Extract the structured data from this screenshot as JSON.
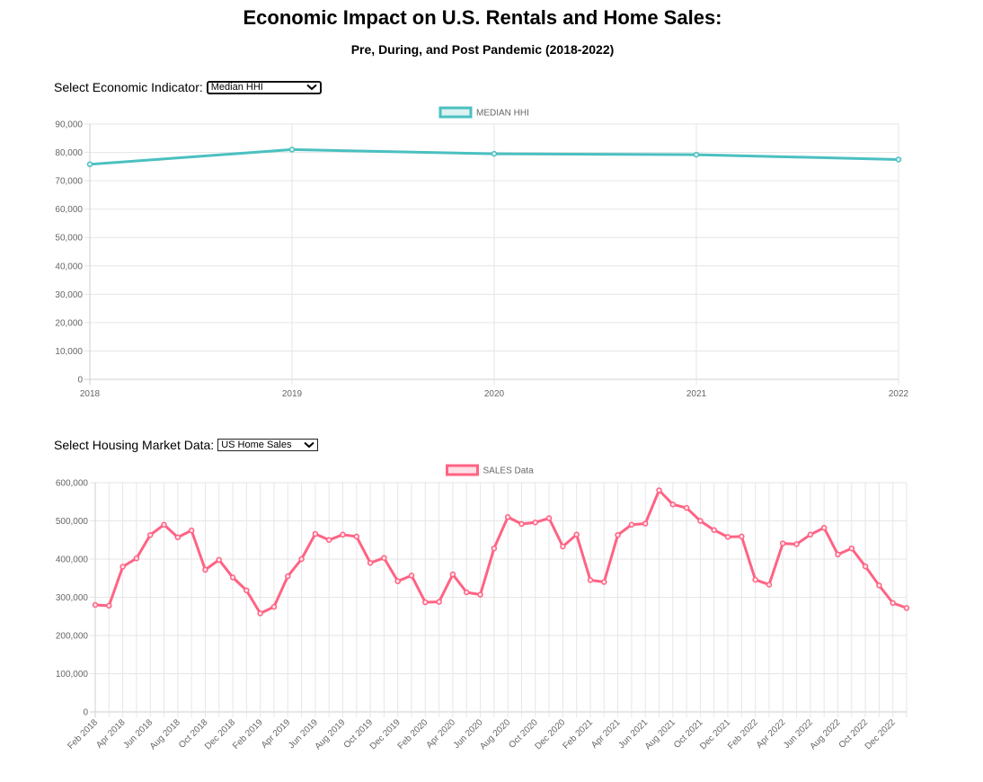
{
  "header": {
    "title": "Economic Impact on U.S. Rentals and Home Sales:",
    "subtitle": "Pre, During, and Post Pandemic (2018-2022)"
  },
  "economic_control": {
    "label": "Select Economic Indicator:",
    "selected": "Median HHI"
  },
  "housing_control": {
    "label": "Select Housing Market Data:",
    "selected": "US Home Sales"
  },
  "icons": {
    "dropdown": "chevron-down-icon"
  },
  "colors": {
    "median_line": "#4bc0c0",
    "median_fill": "#dbf2f2",
    "sales_line": "#ff6384",
    "sales_fill": "#ffe0e6",
    "grid": "#e6e6e6",
    "tick_text": "#666666"
  },
  "chart_data": [
    {
      "type": "line",
      "x": [
        "2018",
        "2019",
        "2020",
        "2021",
        "2022"
      ],
      "series": [
        {
          "name": "MEDIAN HHI",
          "values": [
            75800,
            81000,
            79500,
            79200,
            77500
          ]
        }
      ],
      "ylim": [
        0,
        90000
      ],
      "yticks": [
        0,
        10000,
        20000,
        30000,
        40000,
        50000,
        60000,
        70000,
        80000,
        90000
      ],
      "ytick_labels": [
        "0",
        "10,000",
        "20,000",
        "30,000",
        "40,000",
        "50,000",
        "60,000",
        "70,000",
        "80,000",
        "90,000"
      ],
      "grid": true,
      "legend": "top-center"
    },
    {
      "type": "line",
      "x": [
        "Feb 2018",
        "Mar 2018",
        "Apr 2018",
        "May 2018",
        "Jun 2018",
        "Jul 2018",
        "Aug 2018",
        "Sep 2018",
        "Oct 2018",
        "Nov 2018",
        "Dec 2018",
        "Jan 2019",
        "Feb 2019",
        "Mar 2019",
        "Apr 2019",
        "May 2019",
        "Jun 2019",
        "Jul 2019",
        "Aug 2019",
        "Sep 2019",
        "Oct 2019",
        "Nov 2019",
        "Dec 2019",
        "Jan 2020",
        "Feb 2020",
        "Mar 2020",
        "Apr 2020",
        "May 2020",
        "Jun 2020",
        "Jul 2020",
        "Aug 2020",
        "Sep 2020",
        "Oct 2020",
        "Nov 2020",
        "Dec 2020",
        "Jan 2021",
        "Feb 2021",
        "Mar 2021",
        "Apr 2021",
        "May 2021",
        "Jun 2021",
        "Jul 2021",
        "Aug 2021",
        "Sep 2021",
        "Oct 2021",
        "Nov 2021",
        "Dec 2021",
        "Jan 2022",
        "Feb 2022",
        "Mar 2022",
        "Apr 2022",
        "May 2022",
        "Jun 2022",
        "Jul 2022",
        "Aug 2022",
        "Sep 2022",
        "Oct 2022",
        "Nov 2022",
        "Dec 2022",
        "Jan 2023"
      ],
      "xtick_labels": [
        "Feb 2018",
        "Apr 2018",
        "Jun 2018",
        "Aug 2018",
        "Oct 2018",
        "Dec 2018",
        "Feb 2019",
        "Apr 2019",
        "Jun 2019",
        "Aug 2019",
        "Oct 2019",
        "Dec 2019",
        "Feb 2020",
        "Apr 2020",
        "Jun 2020",
        "Aug 2020",
        "Oct 2020",
        "Dec 2020",
        "Feb 2021",
        "Apr 2021",
        "Jun 2021",
        "Aug 2021",
        "Oct 2021",
        "Dec 2021",
        "Feb 2022",
        "Apr 2022",
        "Jun 2022",
        "Aug 2022",
        "Oct 2022",
        "Dec 2022"
      ],
      "series": [
        {
          "name": "SALES Data",
          "values": [
            280000,
            278000,
            380000,
            402000,
            463000,
            490000,
            457000,
            475000,
            372000,
            398000,
            352000,
            318000,
            258000,
            275000,
            355000,
            400000,
            466000,
            450000,
            464000,
            459000,
            390000,
            403000,
            342000,
            357000,
            287000,
            288000,
            360000,
            313000,
            307000,
            428000,
            510000,
            492000,
            496000,
            507000,
            433000,
            464000,
            345000,
            340000,
            463000,
            490000,
            493000,
            580000,
            543000,
            534000,
            500000,
            476000,
            458000,
            459000,
            346000,
            333000,
            441000,
            439000,
            464000,
            482000,
            412000,
            428000,
            381000,
            331000,
            285000,
            272000
          ]
        }
      ],
      "ylim": [
        0,
        600000
      ],
      "yticks": [
        0,
        100000,
        200000,
        300000,
        400000,
        500000,
        600000
      ],
      "ytick_labels": [
        "0",
        "100,000",
        "200,000",
        "300,000",
        "400,000",
        "500,000",
        "600,000"
      ],
      "grid": true,
      "legend": "top-center"
    }
  ]
}
